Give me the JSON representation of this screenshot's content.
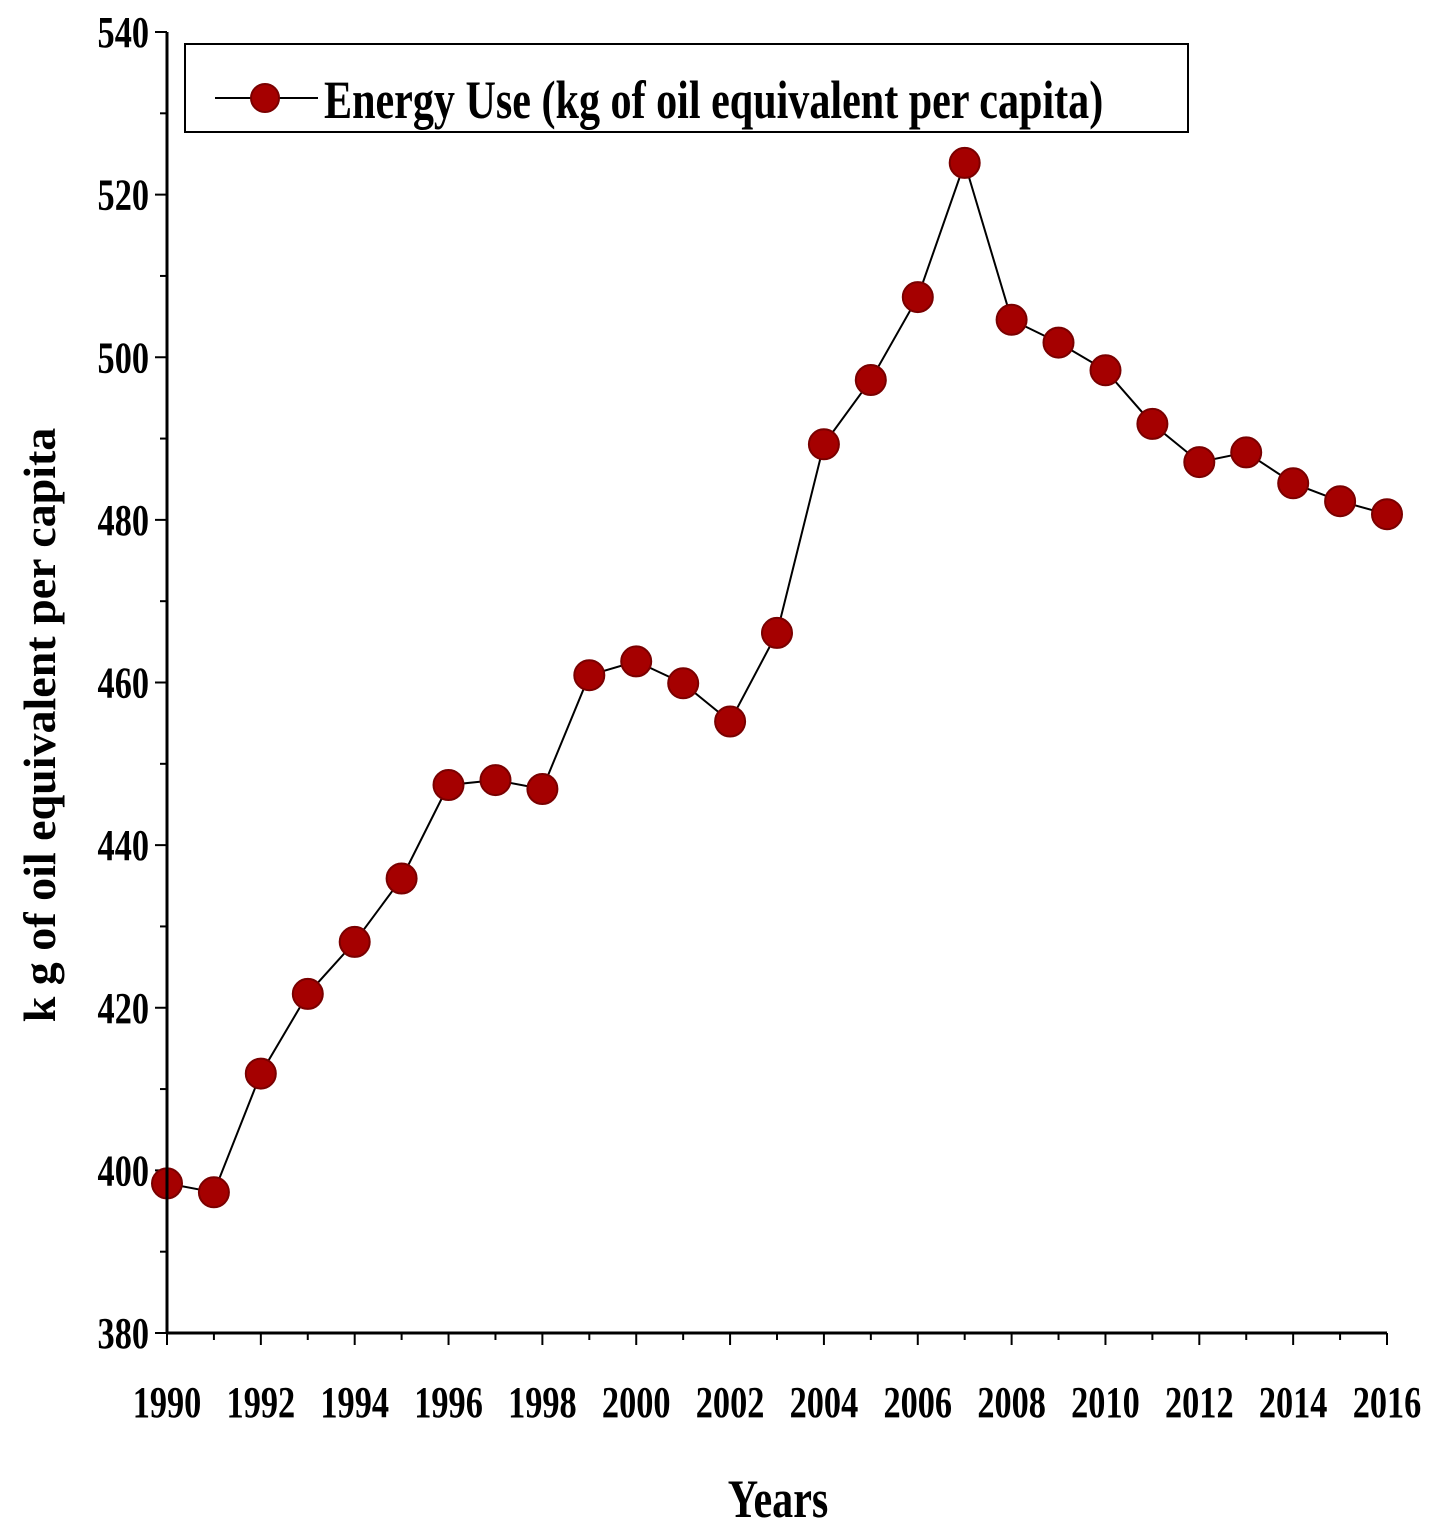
{
  "chart_data": {
    "type": "line",
    "title": "",
    "xlabel": "Years",
    "ylabel": "k g of oil equivalent per capita",
    "xlim": [
      1990,
      2016
    ],
    "ylim": [
      380,
      540
    ],
    "x_tick_labels": [
      "1990",
      "1992",
      "1994",
      "1996",
      "1998",
      "2000",
      "2002",
      "2004",
      "2006",
      "2008",
      "2010",
      "2012",
      "2014",
      "2016"
    ],
    "y_tick_labels": [
      "380",
      "400",
      "420",
      "440",
      "460",
      "480",
      "500",
      "520",
      "540"
    ],
    "legend_position": "top-left",
    "grid": false,
    "series": [
      {
        "name": "Energy Use (kg of oil equivalent per capita)",
        "color": "#a50000",
        "line_color": "#000000",
        "marker": "circle",
        "x": [
          1990,
          1991,
          1992,
          1993,
          1994,
          1995,
          1996,
          1997,
          1998,
          1999,
          2000,
          2001,
          2002,
          2003,
          2004,
          2005,
          2006,
          2007,
          2008,
          2009,
          2010,
          2011,
          2012,
          2013,
          2014,
          2015,
          2016
        ],
        "values": [
          398.4,
          397.3,
          411.9,
          421.7,
          428.1,
          435.9,
          447.4,
          448.0,
          446.9,
          460.9,
          462.6,
          459.9,
          455.2,
          466.1,
          489.3,
          497.2,
          507.4,
          523.9,
          504.6,
          501.8,
          498.4,
          491.8,
          487.1,
          488.3,
          484.5,
          482.3,
          480.7
        ]
      }
    ]
  }
}
